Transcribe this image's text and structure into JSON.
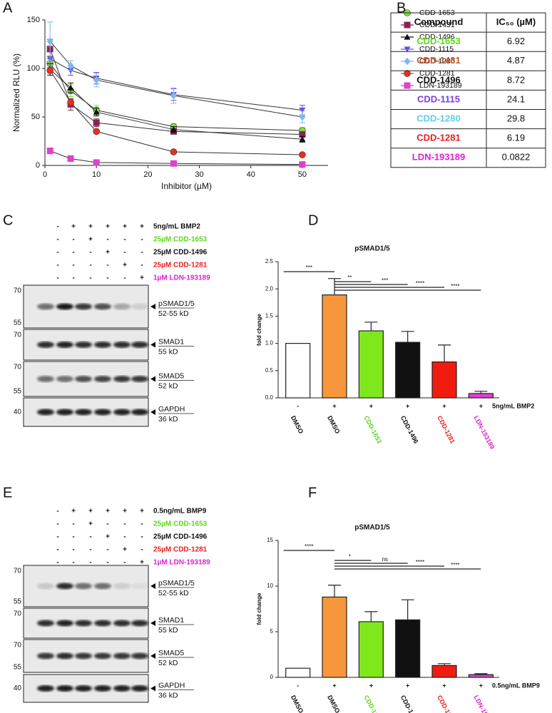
{
  "panel_labels": [
    "A",
    "B",
    "C",
    "D",
    "E",
    "F"
  ],
  "chart_data": [
    {
      "type": "line",
      "x_label": "Inhibitor (µM)",
      "y_label": "Normalized RLU (%)",
      "x": [
        1,
        5,
        10,
        25,
        50
      ],
      "xlim": [
        0,
        55
      ],
      "xticks": [
        0,
        10,
        20,
        30,
        40,
        50
      ],
      "ylim": [
        0,
        150
      ],
      "yticks": [
        0,
        50,
        100,
        150
      ],
      "series": [
        {
          "name": "CDD-1653",
          "color": "#7ee03a",
          "marker": "circle",
          "values": [
            105,
            77,
            57,
            40,
            36
          ],
          "errors": [
            8,
            6,
            5,
            3,
            3
          ]
        },
        {
          "name": "CDD-1431",
          "color": "#8b2252",
          "marker": "square",
          "values": [
            120,
            63,
            44,
            35,
            32
          ],
          "errors": [
            10,
            6,
            4,
            2,
            2
          ]
        },
        {
          "name": "CDD-1496",
          "color": "#111111",
          "marker": "triangle",
          "values": [
            99,
            80,
            55,
            37,
            27
          ],
          "errors": [
            6,
            5,
            4,
            3,
            3
          ]
        },
        {
          "name": "CDD-1115",
          "color": "#6a4fe0",
          "marker": "triangle-down",
          "values": [
            110,
            98,
            90,
            73,
            57
          ],
          "errors": [
            12,
            5,
            6,
            6,
            5
          ]
        },
        {
          "name": "CDD-1280",
          "color": "#7fb8f0",
          "marker": "diamond",
          "values": [
            128,
            103,
            88,
            72,
            50
          ],
          "errors": [
            20,
            5,
            7,
            8,
            6
          ]
        },
        {
          "name": "CDD-1281",
          "color": "#e8301a",
          "marker": "circle",
          "values": [
            98,
            65,
            35,
            14,
            11
          ],
          "errors": [
            3,
            3,
            2,
            1,
            1
          ]
        },
        {
          "name": "LDN-193189",
          "color": "#e040d0",
          "marker": "square",
          "values": [
            15,
            7,
            3,
            2,
            1
          ],
          "errors": [
            3,
            3,
            1,
            1,
            1
          ]
        }
      ]
    },
    {
      "type": "bar",
      "title": "pSMAD1/5",
      "y_label": "fold change",
      "categories": [
        "DMSO",
        "DMSO",
        "CDD-1653",
        "CDD-1496",
        "CDD-1281",
        "LDN-193189"
      ],
      "category_colors": [
        "#111111",
        "#111111",
        "#5ed620",
        "#111111",
        "#e82020",
        "#e020d0"
      ],
      "treatment": [
        "-",
        "+",
        "+",
        "+",
        "+",
        "+"
      ],
      "treatment_label": "5ng/mL BMP2",
      "values": [
        1.0,
        1.89,
        1.23,
        1.02,
        0.66,
        0.08
      ],
      "errors": [
        0,
        0.3,
        0.16,
        0.2,
        0.31,
        0.04
      ],
      "colors": [
        "#ffffff",
        "#f7963a",
        "#7ee81c",
        "#111111",
        "#f01c10",
        "#e040d0"
      ],
      "ylim": [
        0,
        2.5
      ],
      "yticks": [
        {
          "value": 0,
          "label": "0.0"
        },
        {
          "value": 0.5,
          "label": "0.5"
        },
        {
          "value": 1,
          "label": "1.0"
        },
        {
          "value": 1.5,
          "label": "1.5"
        },
        {
          "value": 2,
          "label": "2.0"
        },
        {
          "value": 2.5,
          "label": "2.5"
        }
      ],
      "significance": [
        "***",
        "**",
        "***",
        "****",
        "****"
      ]
    },
    {
      "type": "bar",
      "title": "pSMAD1/5",
      "y_label": "fold change",
      "categories": [
        "DMSO",
        "DMSO",
        "CDD-1653",
        "CDD-1496",
        "CDD-1281",
        "LDN-193189"
      ],
      "category_colors": [
        "#111111",
        "#111111",
        "#5ed620",
        "#111111",
        "#e82020",
        "#e020d0"
      ],
      "treatment": [
        "-",
        "+",
        "+",
        "+",
        "+",
        "+"
      ],
      "treatment_label": "0.5ng/mL BMP9",
      "values": [
        1,
        8.8,
        6.1,
        6.3,
        1.3,
        0.3
      ],
      "errors": [
        0,
        1.3,
        1.1,
        2.2,
        0.2,
        0.1
      ],
      "colors": [
        "#ffffff",
        "#f7963a",
        "#7ee81c",
        "#111111",
        "#f01c10",
        "#e040d0"
      ],
      "ylim": [
        0,
        15
      ],
      "yticks": [
        0,
        5,
        10,
        15
      ],
      "significance": [
        "****",
        "*",
        "ns",
        "****",
        "****"
      ]
    }
  ],
  "table": {
    "header": [
      "Compound",
      "IC₅₀ (µM)"
    ],
    "rows": [
      [
        "CDD-1653",
        "6.92"
      ],
      [
        "CDD-1431",
        "4.87"
      ],
      [
        "CDD-1496",
        "8.72"
      ],
      [
        "CDD-1115",
        "24.1"
      ],
      [
        "CDD-1280",
        "29.8"
      ],
      [
        "CDD-1281",
        "6.19"
      ],
      [
        "LDN-193189",
        "0.0822"
      ]
    ],
    "row_colors": [
      "#5ed620",
      "#c8562a",
      "#111111",
      "#7b3fe0",
      "#5fd0e8",
      "#e82020",
      "#e020d0"
    ]
  },
  "blots": [
    {
      "conditions": [
        {
          "label": "5ng/mL BMP2",
          "color": "#111111",
          "signs": [
            "-",
            "+",
            "+",
            "+",
            "+",
            "+"
          ]
        },
        {
          "label": "25µM CDD-1653",
          "color": "#5ed620",
          "signs": [
            "-",
            "-",
            "+",
            "-",
            "-",
            "-"
          ]
        },
        {
          "label": "25µM CDD-1496",
          "color": "#111111",
          "signs": [
            "-",
            "-",
            "-",
            "+",
            "-",
            "-"
          ]
        },
        {
          "label": "25µM CDD-1281",
          "color": "#e82020",
          "signs": [
            "-",
            "-",
            "-",
            "-",
            "+",
            "-"
          ]
        },
        {
          "label": "1µM LDN-193189",
          "color": "#e020d0",
          "signs": [
            "-",
            "-",
            "-",
            "-",
            "-",
            "+"
          ]
        }
      ],
      "bands": [
        {
          "name": "pSMAD1/5",
          "size": "52-55 kD",
          "markers": [
            "70",
            "55"
          ]
        },
        {
          "name": "SMAD1",
          "size": "55 kD",
          "markers": [
            "70"
          ]
        },
        {
          "name": "SMAD5",
          "size": "52 kD",
          "markers": [
            "70",
            "55"
          ]
        },
        {
          "name": "GAPDH",
          "size": "36 kD",
          "markers": [
            "40"
          ]
        }
      ]
    },
    {
      "conditions": [
        {
          "label": "0.5ng/mL BMP9",
          "color": "#111111",
          "signs": [
            "-",
            "+",
            "+",
            "+",
            "+",
            "+"
          ]
        },
        {
          "label": "25µM CDD-1653",
          "color": "#5ed620",
          "signs": [
            "-",
            "-",
            "+",
            "-",
            "-",
            "-"
          ]
        },
        {
          "label": "25µM CDD-1496",
          "color": "#111111",
          "signs": [
            "-",
            "-",
            "-",
            "+",
            "-",
            "-"
          ]
        },
        {
          "label": "25µM CDD-1281",
          "color": "#e82020",
          "signs": [
            "-",
            "-",
            "-",
            "-",
            "+",
            "-"
          ]
        },
        {
          "label": "1µM LDN-193189",
          "color": "#e020d0",
          "signs": [
            "-",
            "-",
            "-",
            "-",
            "-",
            "+"
          ]
        }
      ],
      "bands": [
        {
          "name": "pSMAD1/5",
          "size": "52-55 kD",
          "markers": [
            "70",
            "55"
          ]
        },
        {
          "name": "SMAD1",
          "size": "55 kD",
          "markers": [
            "70"
          ]
        },
        {
          "name": "SMAD5",
          "size": "52 kD",
          "markers": [
            "70",
            "55"
          ]
        },
        {
          "name": "GAPDH",
          "size": "36 kD",
          "markers": [
            "40"
          ]
        }
      ]
    }
  ]
}
